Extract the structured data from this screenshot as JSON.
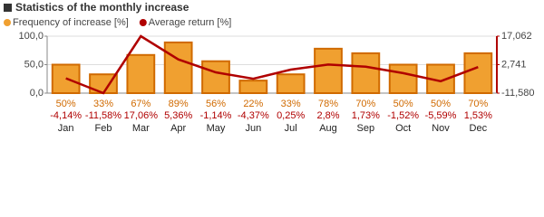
{
  "chart_data": {
    "type": "bar",
    "title": "Statistics of the monthly increase",
    "categories": [
      "Jan",
      "Feb",
      "Mar",
      "Apr",
      "May",
      "Jun",
      "Jul",
      "Aug",
      "Sep",
      "Oct",
      "Nov",
      "Dec"
    ],
    "series": [
      {
        "name": "Frequency of increase [%]",
        "type": "bar",
        "color": "#f0a030",
        "edge_color": "#d06a00",
        "values": [
          50,
          33,
          67,
          89,
          56,
          22,
          33,
          78,
          70,
          50,
          50,
          70
        ],
        "value_labels": [
          "50%",
          "33%",
          "67%",
          "89%",
          "56%",
          "22%",
          "33%",
          "78%",
          "70%",
          "50%",
          "50%",
          "70%"
        ]
      },
      {
        "name": "Average return [%]",
        "type": "line",
        "axis": "y2",
        "color": "#b00000",
        "values": [
          -4.14,
          -11.58,
          17.06,
          5.36,
          -1.14,
          -4.37,
          0.25,
          2.8,
          1.73,
          -1.52,
          -5.59,
          1.53
        ],
        "value_labels": [
          "-4,14%",
          "-11,58%",
          "17,06%",
          "5,36%",
          "-1,14%",
          "-4,37%",
          "0,25%",
          "2,8%",
          "1,73%",
          "-1,52%",
          "-5,59%",
          "1,53%"
        ]
      }
    ],
    "ylim": [
      0,
      100
    ],
    "yticks": [
      {
        "value": 0,
        "label": "0,0"
      },
      {
        "value": 50,
        "label": "50,0"
      },
      {
        "value": 100,
        "label": "100,0"
      }
    ],
    "y2lim": [
      -11.58,
      17.062
    ],
    "y2ticks": [
      {
        "value": -11.58,
        "label": "-11,580"
      },
      {
        "value": 2.741,
        "label": "2,741"
      },
      {
        "value": 17.062,
        "label": "17,062"
      }
    ],
    "grid": true
  }
}
